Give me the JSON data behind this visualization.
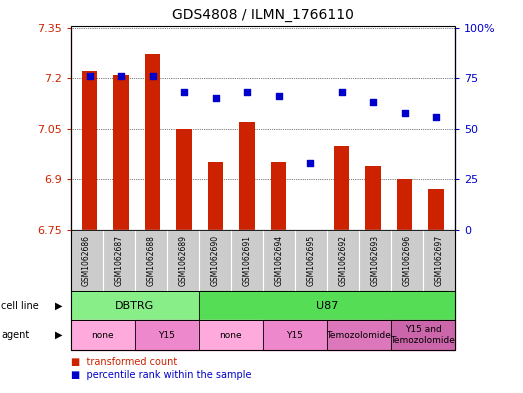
{
  "title": "GDS4808 / ILMN_1766110",
  "samples": [
    "GSM1062686",
    "GSM1062687",
    "GSM1062688",
    "GSM1062689",
    "GSM1062690",
    "GSM1062691",
    "GSM1062694",
    "GSM1062695",
    "GSM1062692",
    "GSM1062693",
    "GSM1062696",
    "GSM1062697"
  ],
  "bar_values": [
    7.22,
    7.21,
    7.27,
    7.05,
    6.95,
    7.07,
    6.95,
    6.75,
    7.0,
    6.94,
    6.9,
    6.87
  ],
  "dot_values": [
    76,
    76,
    76,
    68,
    65,
    68,
    66,
    33,
    68,
    63,
    58,
    56
  ],
  "ylim_left": [
    6.75,
    7.35
  ],
  "ylim_right": [
    0,
    100
  ],
  "yticks_left": [
    6.75,
    6.9,
    7.05,
    7.2,
    7.35
  ],
  "yticks_right": [
    0,
    25,
    50,
    75,
    100
  ],
  "ytick_labels_right": [
    "0",
    "25",
    "50",
    "75",
    "100%"
  ],
  "bar_color": "#cc2200",
  "dot_color": "#0000cc",
  "bar_bottom": 6.75,
  "cell_line_groups": [
    {
      "label": "DBTRG",
      "start": 0,
      "end": 3,
      "color": "#88ee88"
    },
    {
      "label": "U87",
      "start": 4,
      "end": 11,
      "color": "#55dd55"
    }
  ],
  "agent_groups": [
    {
      "label": "none",
      "start": 0,
      "end": 1,
      "color": "#ffaadd"
    },
    {
      "label": "Y15",
      "start": 2,
      "end": 3,
      "color": "#ee88cc"
    },
    {
      "label": "none",
      "start": 4,
      "end": 5,
      "color": "#ffaadd"
    },
    {
      "label": "Y15",
      "start": 6,
      "end": 7,
      "color": "#ee88cc"
    },
    {
      "label": "Temozolomide",
      "start": 8,
      "end": 9,
      "color": "#dd77bb"
    },
    {
      "label": "Y15 and\nTemozolomide",
      "start": 10,
      "end": 11,
      "color": "#cc66aa"
    }
  ],
  "plot_bg": "#ffffff",
  "grid_color": "#000000",
  "tick_bg_color": "#cccccc",
  "figsize": [
    5.23,
    3.93
  ],
  "dpi": 100
}
